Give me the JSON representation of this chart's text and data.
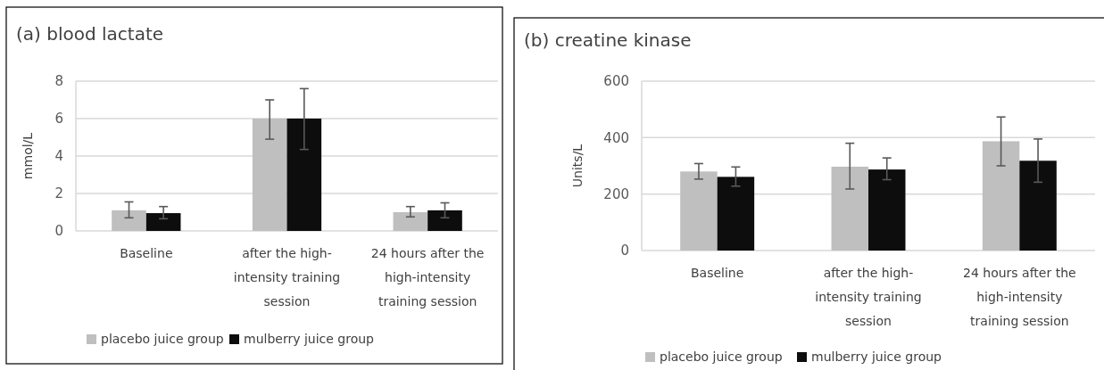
{
  "chart_data": [
    {
      "type": "bar",
      "title": "(a) blood lactate",
      "ylabel": "mmol/L",
      "categories": [
        "Baseline",
        "after the high-intensity training session",
        "24 hours after the high-intensity training session"
      ],
      "series": [
        {
          "name": "placebo juice group",
          "color": "#bfbfbf",
          "values": [
            1.1,
            6.0,
            1.0
          ],
          "errors": [
            [
              0.7,
              1.55
            ],
            [
              4.9,
              7.0
            ],
            [
              0.75,
              1.3
            ]
          ]
        },
        {
          "name": "mulberry juice group",
          "color": "#0d0d0d",
          "values": [
            0.95,
            6.0,
            1.1
          ],
          "errors": [
            [
              0.65,
              1.3
            ],
            [
              4.35,
              7.6
            ],
            [
              0.7,
              1.5
            ]
          ]
        }
      ],
      "ylim": [
        0,
        8
      ],
      "yticks": [
        0,
        2,
        4,
        6,
        8
      ],
      "grid": "y",
      "legend": "bottom"
    },
    {
      "type": "bar",
      "title": "(b) creatine kinase",
      "ylabel": "Units/L",
      "categories": [
        "Baseline",
        "after the high-intensity training session",
        "24 hours after the high-intensity training session"
      ],
      "series": [
        {
          "name": "placebo juice group",
          "color": "#bfbfbf",
          "values": [
            280,
            297,
            387
          ],
          "errors": [
            [
              253,
              308
            ],
            [
              218,
              380
            ],
            [
              300,
              473
            ]
          ]
        },
        {
          "name": "mulberry juice group",
          "color": "#0d0d0d",
          "values": [
            261,
            287,
            318
          ],
          "errors": [
            [
              228,
              296
            ],
            [
              251,
              328
            ],
            [
              242,
              395
            ]
          ]
        }
      ],
      "ylim": [
        0,
        600
      ],
      "yticks": [
        0,
        200,
        400,
        600
      ],
      "grid": "y",
      "legend": "bottom"
    }
  ]
}
